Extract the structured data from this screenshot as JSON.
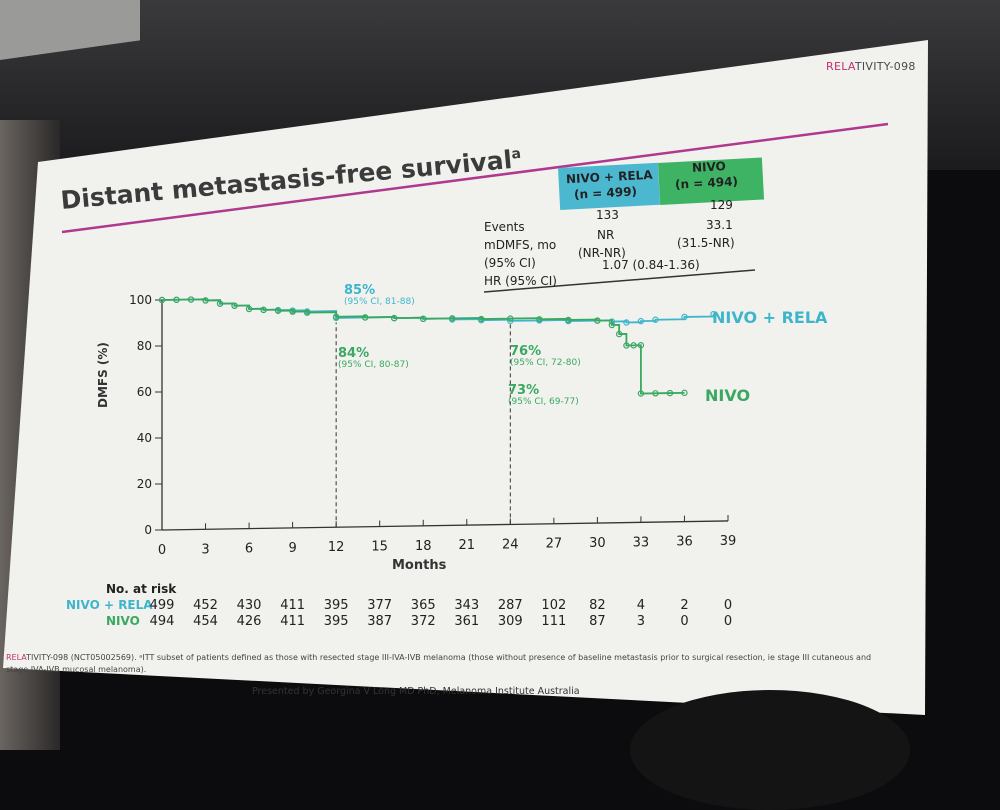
{
  "header_tag": {
    "prefix": "RELA",
    "suffix": "TIVITY-098"
  },
  "title": "Distant metastasis-free survival",
  "title_sup": "a",
  "table": {
    "col1_header_1": "NIVO + RELA",
    "col1_header_2": "(n = 499)",
    "col2_header_1": "NIVO",
    "col2_header_2": "(n = 494)",
    "rows": [
      {
        "label": "Events",
        "v1": "133",
        "v2": "129"
      },
      {
        "label": "mDMFS, mo",
        "v1": "NR",
        "v2": "33.1"
      },
      {
        "label": "(95% CI)",
        "v1": "(NR-NR)",
        "v2": "(31.5-NR)"
      }
    ],
    "hr_label": "HR (95% CI)",
    "hr_value": "1.07 (0.84-1.36)"
  },
  "chart_data": {
    "type": "line",
    "title": "",
    "xlabel": "Months",
    "ylabel": "DMFS (%)",
    "xlim": [
      0,
      39
    ],
    "ylim": [
      0,
      100
    ],
    "x_ticks": [
      0,
      3,
      6,
      9,
      12,
      15,
      18,
      21,
      24,
      27,
      30,
      33,
      36,
      39
    ],
    "y_ticks": [
      0,
      20,
      40,
      60,
      80,
      100
    ],
    "grid": false,
    "series": [
      {
        "name": "NIVO + RELA",
        "color": "#3fb5cc",
        "x": [
          0,
          1,
          2,
          3,
          4,
          5,
          6,
          7,
          8,
          9,
          10,
          12,
          14,
          16,
          18,
          20,
          22,
          24,
          26,
          28,
          30,
          31,
          32,
          33,
          34,
          36,
          38
        ],
        "y": [
          100,
          100,
          100,
          99.5,
          98,
          97,
          95.5,
          95,
          94.8,
          94.5,
          94,
          91,
          91,
          90.5,
          90,
          89.5,
          89,
          88.5,
          88.5,
          88,
          88,
          87.5,
          87,
          87.5,
          88,
          89,
          90
        ]
      },
      {
        "name": "NIVO",
        "color": "#3aa860",
        "x": [
          0,
          1,
          2,
          3,
          4,
          5,
          6,
          7,
          8,
          9,
          10,
          12,
          14,
          16,
          18,
          20,
          22,
          24,
          26,
          28,
          30,
          31,
          31.5,
          32,
          32.5,
          33,
          33,
          34,
          35,
          36
        ],
        "y": [
          100,
          100,
          100,
          99.5,
          98,
          97,
          95.5,
          95,
          94.5,
          94,
          93.5,
          91.5,
          91,
          90.5,
          90,
          90,
          89.5,
          89.5,
          89,
          88.5,
          88,
          86,
          82,
          77,
          77,
          77,
          56,
          56,
          56,
          56
        ]
      }
    ],
    "annotations": [
      {
        "text": "85%",
        "ci": "(95% CI, 81-88)",
        "color": "#3fb5cc"
      },
      {
        "text": "84%",
        "ci": "(95% CI, 80-87)",
        "color": "#3aa860"
      },
      {
        "text": "76%",
        "ci": "(95% CI, 72-80)",
        "color": "#3aa860"
      },
      {
        "text": "73%",
        "ci": "(95% CI, 69-77)",
        "color": "#3aa860"
      }
    ],
    "ref_lines_x": [
      12,
      24
    ],
    "legend_labels": {
      "rela": "NIVO + RELA",
      "nivo": "NIVO"
    }
  },
  "risk_table": {
    "title": "No. at risk",
    "rows": [
      {
        "name": "NIVO + RELA",
        "color": "#3fb5cc",
        "values": [
          "499",
          "452",
          "430",
          "411",
          "395",
          "377",
          "365",
          "343",
          "287",
          "102",
          "82",
          "4",
          "2",
          "0"
        ]
      },
      {
        "name": "NIVO",
        "color": "#3aa860",
        "values": [
          "494",
          "454",
          "426",
          "411",
          "395",
          "387",
          "372",
          "361",
          "309",
          "111",
          "87",
          "3",
          "0",
          "0"
        ]
      }
    ]
  },
  "footnote": {
    "prefix": "RELA",
    "text": "TIVITY-098 (NCT05002569). ᵃITT subset of patients defined as those with resected stage III-IVA-IVB melanoma (those without presence of baseline metastasis prior to surgical resection, ie stage III cutaneous and stage IVA-IVB mucosal melanoma)."
  },
  "presenter": "Presented by Georgina V Long MD PhD, Melanoma Institute Australia"
}
